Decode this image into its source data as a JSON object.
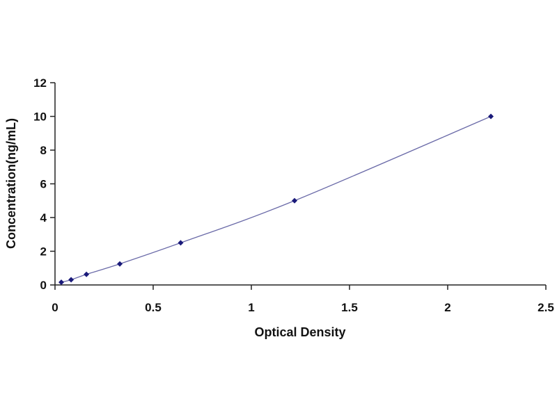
{
  "chart_data": {
    "type": "scatter",
    "title": "",
    "xlabel": "Optical Density",
    "ylabel": "Concentration(ng/mL)",
    "xlim": [
      0,
      2.5
    ],
    "ylim": [
      0,
      12
    ],
    "xticks": [
      "0",
      "0.5",
      "1",
      "1.5",
      "2",
      "2.5"
    ],
    "yticks": [
      "0",
      "2",
      "4",
      "6",
      "8",
      "10",
      "12"
    ],
    "grid": false,
    "legend": "none",
    "trendline": "smooth",
    "colors": {
      "point": "#1a1a7a",
      "line": "#6a6aa8",
      "axis": "#222222"
    },
    "series": [
      {
        "x": [
          0.032,
          0.082,
          0.16,
          0.33,
          0.64,
          1.22,
          2.22
        ],
        "y": [
          0.16,
          0.31,
          0.63,
          1.25,
          2.5,
          5,
          10
        ]
      }
    ]
  }
}
